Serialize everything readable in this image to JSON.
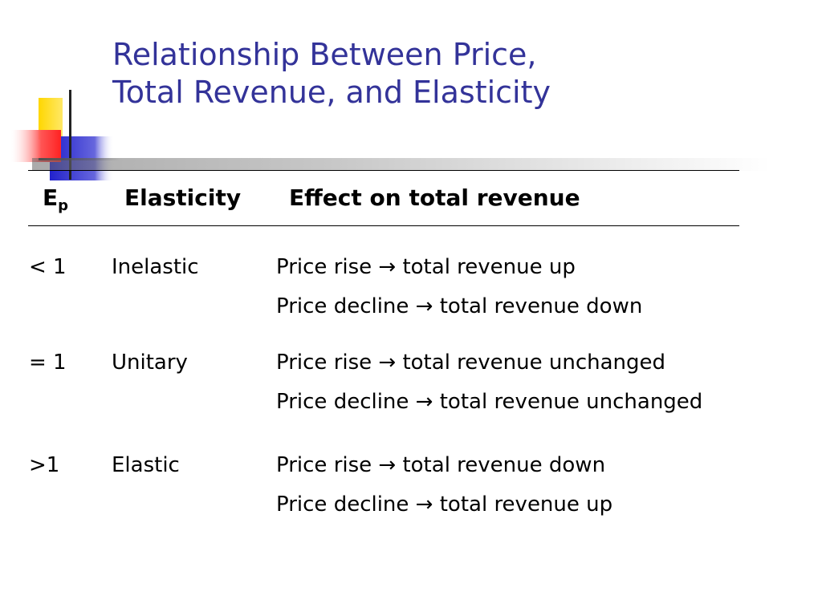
{
  "title": {
    "line1": "Relationship Between Price,",
    "line2": "Total Revenue, and Elasticity"
  },
  "table": {
    "headers": {
      "ep_main": "E",
      "ep_sub": "p",
      "elasticity": "Elasticity",
      "effect": "Effect on total revenue"
    },
    "rows": [
      {
        "ep": "< 1",
        "elasticity": "Inelastic",
        "effect1": "Price rise → total revenue up",
        "effect2": "Price decline → total revenue down"
      },
      {
        "ep": "= 1",
        "elasticity": "Unitary",
        "effect1": "Price rise → total revenue unchanged",
        "effect2": "Price decline → total revenue unchanged"
      },
      {
        "ep": ">1",
        "elasticity": "Elastic",
        "effect1": "Price rise → total revenue down",
        "effect2": "Price decline → total revenue up"
      }
    ]
  },
  "colors": {
    "title": "#333399",
    "square_yellow": "#ffd700",
    "square_blue": "#3333cc",
    "square_red": "#ff3333"
  }
}
